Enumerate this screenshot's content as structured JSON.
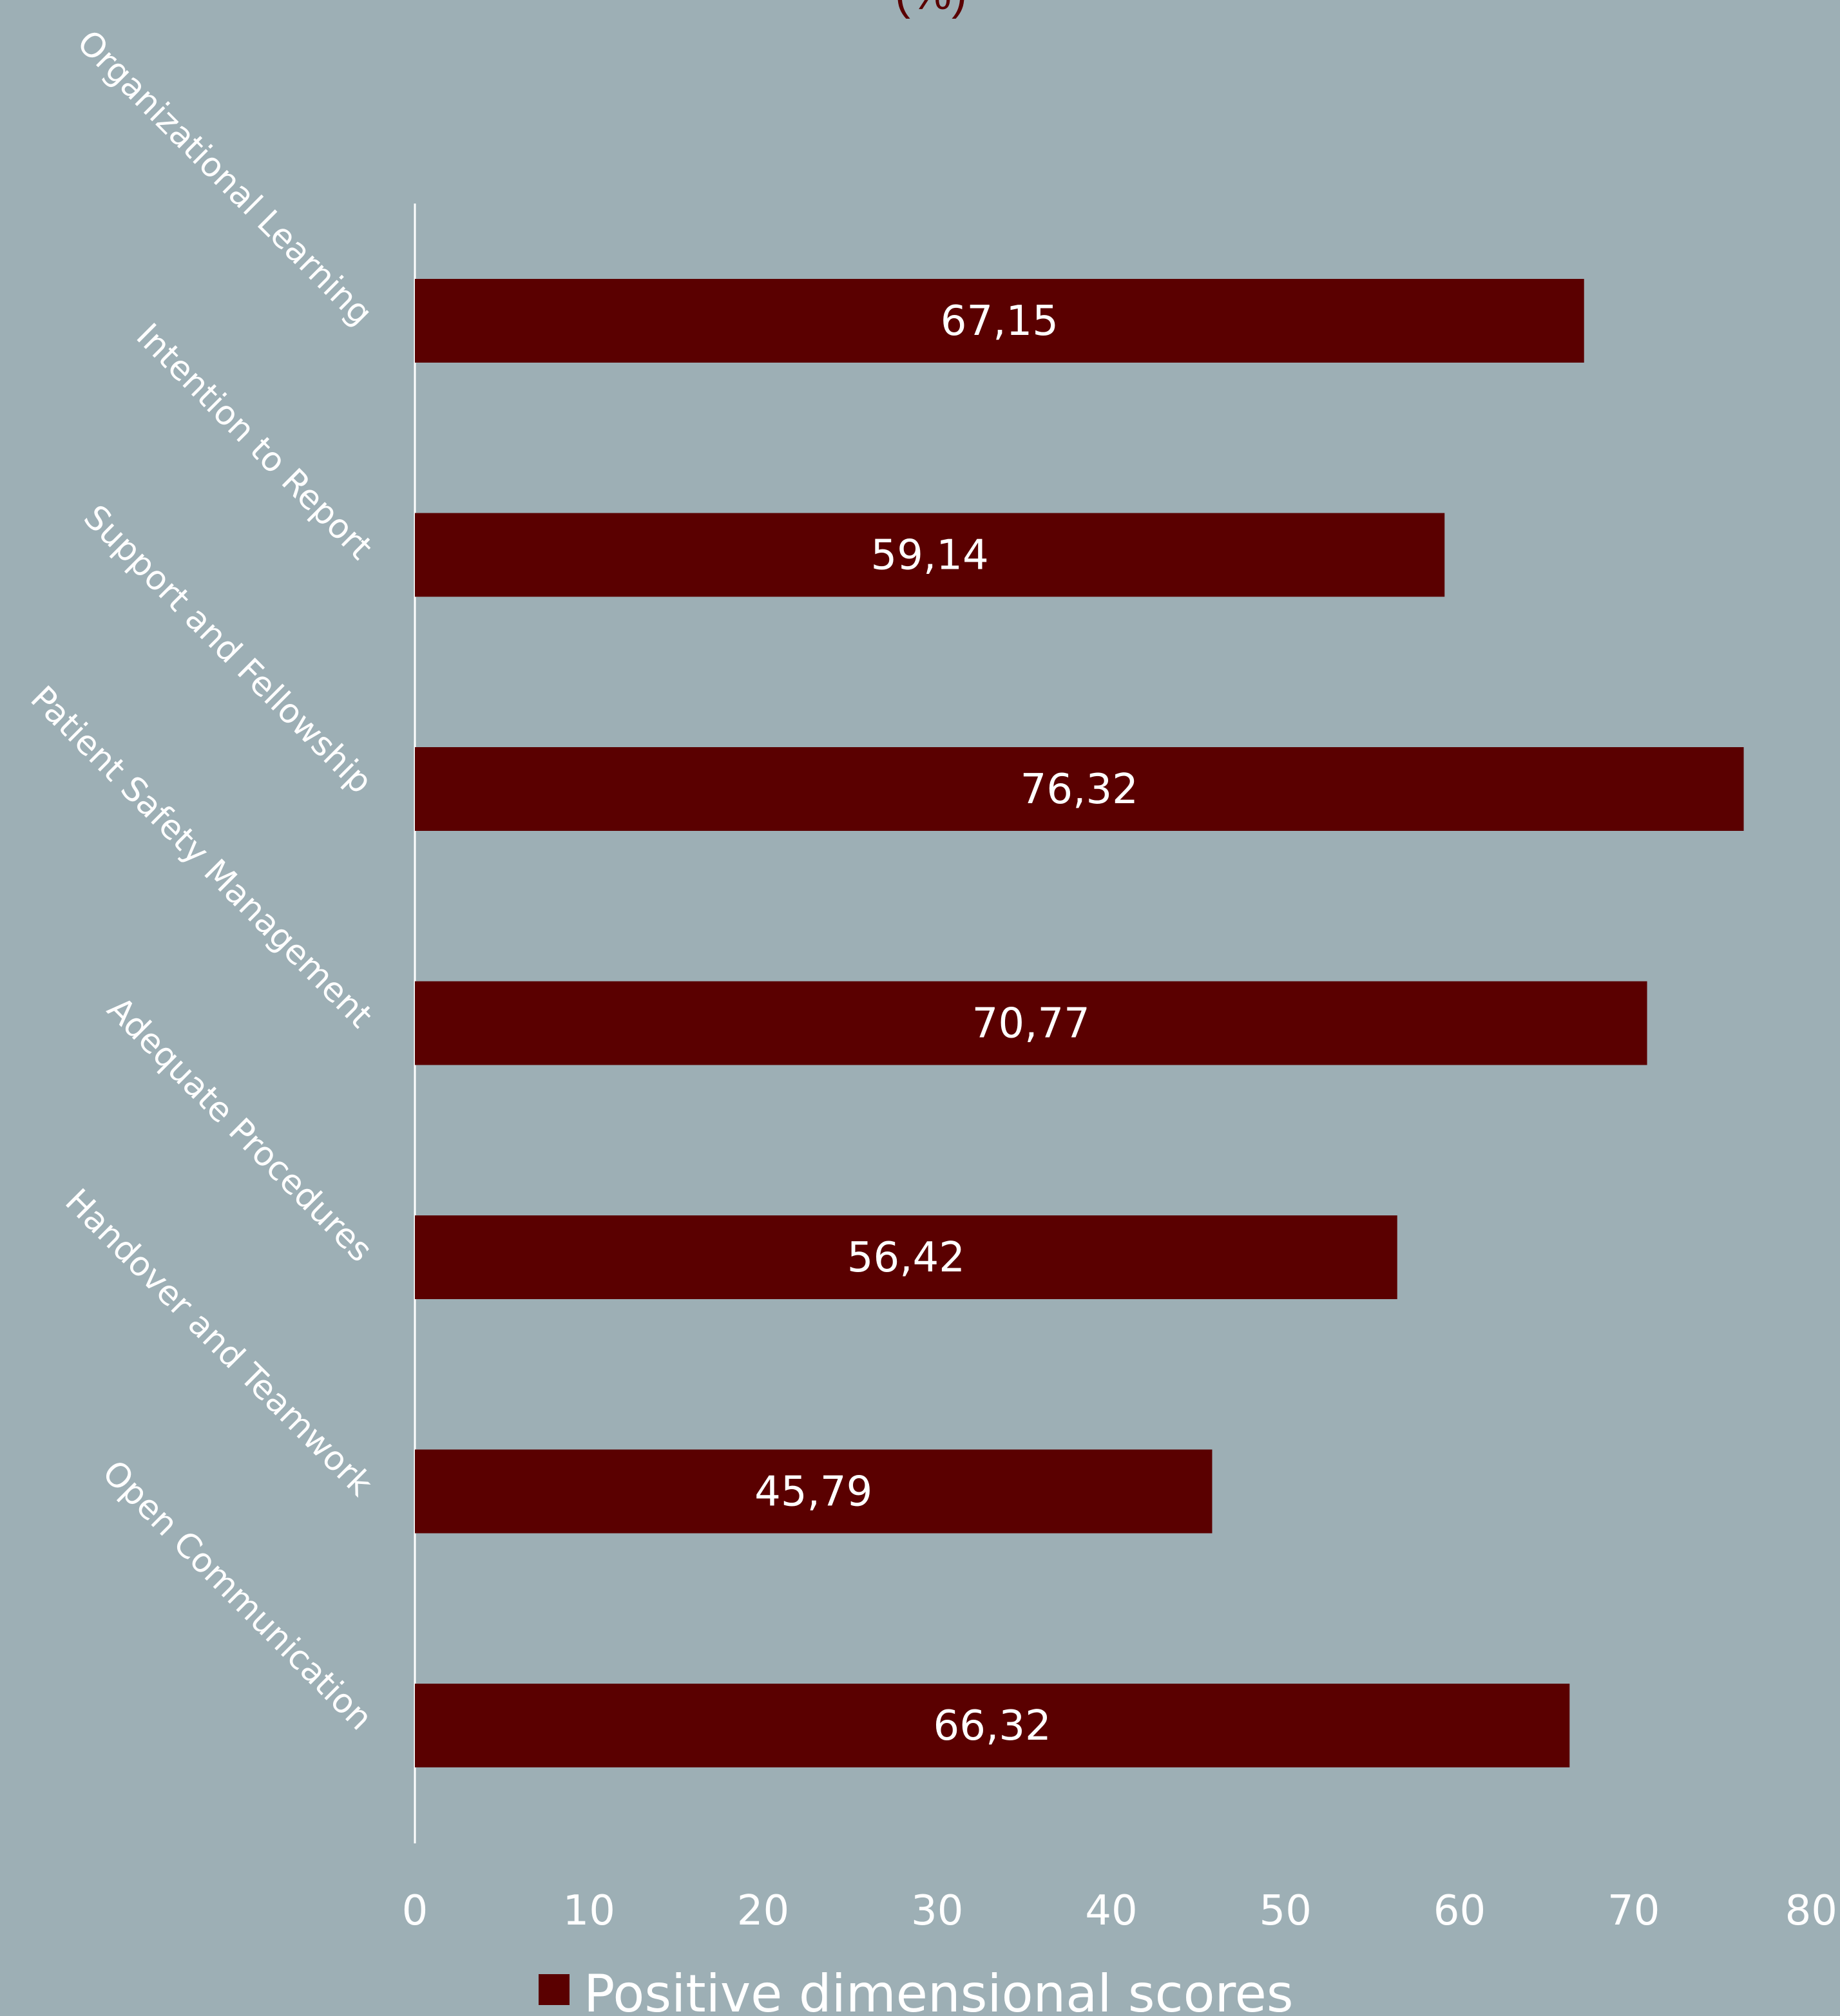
{
  "chart_data": {
    "type": "bar",
    "orientation": "horizontal",
    "title": "(%)",
    "categories": [
      "Organizational Learning",
      "Intention to Report",
      "Support and Fellowship",
      "Patient Safety Management",
      "Adequate Procedures",
      "Handover and Teamwork",
      "Open Communication"
    ],
    "series": [
      {
        "name": "Positive dimensional scores",
        "values": [
          67.15,
          59.14,
          76.32,
          70.77,
          56.42,
          45.79,
          66.32
        ],
        "labels": [
          "67,15",
          "59,14",
          "76,32",
          "70,77",
          "56,42",
          "45,79",
          "66,32"
        ]
      }
    ],
    "xlim": [
      0,
      80
    ],
    "xticks": [
      "0",
      "10",
      "20",
      "30",
      "40",
      "50",
      "60",
      "70",
      "80"
    ],
    "grid": false,
    "legend_position": "bottom",
    "colors": {
      "bar": "#5a0000",
      "background": "#9dafb5",
      "text": "#ffffff"
    }
  }
}
